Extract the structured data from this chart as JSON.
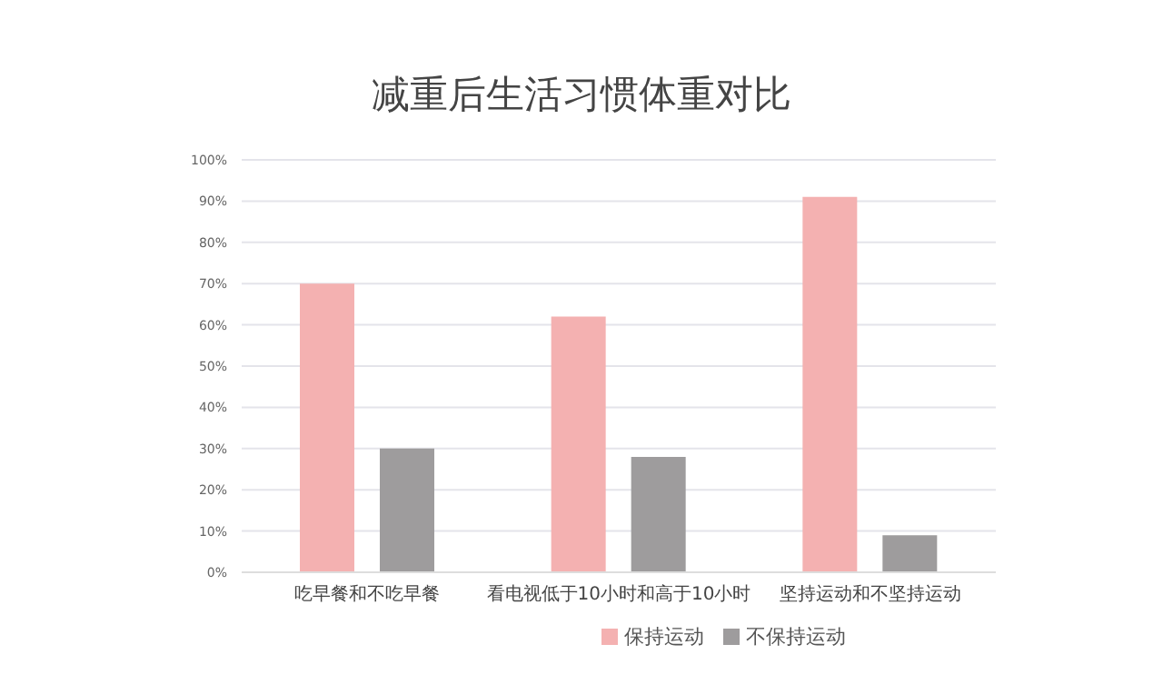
{
  "chart_data": {
    "type": "bar",
    "title": "减重后生活习惯体重对比",
    "categories": [
      "吃早餐和不吃早餐",
      "看电视低于10小时和高于10小时",
      "坚持运动和不坚持运动"
    ],
    "series": [
      {
        "name": "保持运动",
        "color": "#f4b1b1",
        "values": [
          70,
          62,
          91
        ]
      },
      {
        "name": "不保持运动",
        "color": "#9e9c9d",
        "values": [
          30,
          28,
          9
        ]
      }
    ],
    "ylim": [
      0,
      100
    ],
    "yticks": [
      {
        "value": 0,
        "label": "0%"
      },
      {
        "value": 10,
        "label": "10%"
      },
      {
        "value": 20,
        "label": "20%"
      },
      {
        "value": 30,
        "label": "30%"
      },
      {
        "value": 40,
        "label": "40%"
      },
      {
        "value": 50,
        "label": "50%"
      },
      {
        "value": 60,
        "label": "60%"
      },
      {
        "value": 70,
        "label": "70%"
      },
      {
        "value": 80,
        "label": "80%"
      },
      {
        "value": 90,
        "label": "90%"
      },
      {
        "value": 100,
        "label": "100%"
      }
    ],
    "grid": "y",
    "legend": "bottom"
  }
}
